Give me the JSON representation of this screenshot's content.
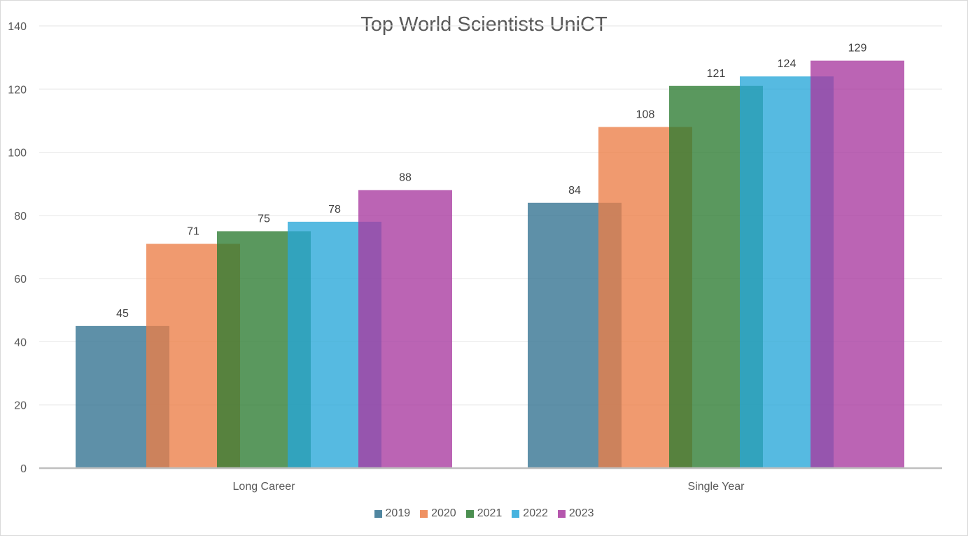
{
  "chart_data": {
    "type": "bar",
    "title": "Top World Scientists UniCT",
    "categories": [
      "Long Career",
      "Single Year"
    ],
    "series": [
      {
        "name": "2019",
        "values": [
          45,
          84
        ],
        "color": "#31718f"
      },
      {
        "name": "2020",
        "values": [
          71,
          108
        ],
        "color": "#ec7e47"
      },
      {
        "name": "2021",
        "values": [
          75,
          121
        ],
        "color": "#2b7b31"
      },
      {
        "name": "2022",
        "values": [
          78,
          124
        ],
        "color": "#26a6d9"
      },
      {
        "name": "2023",
        "values": [
          88,
          129
        ],
        "color": "#a8399f"
      }
    ],
    "yticks": [
      "0",
      "20",
      "40",
      "60",
      "80",
      "100",
      "120",
      "140"
    ],
    "ylim": [
      0,
      140
    ],
    "xlabel": "",
    "ylabel": "",
    "grid": true,
    "legend": "bottom"
  }
}
